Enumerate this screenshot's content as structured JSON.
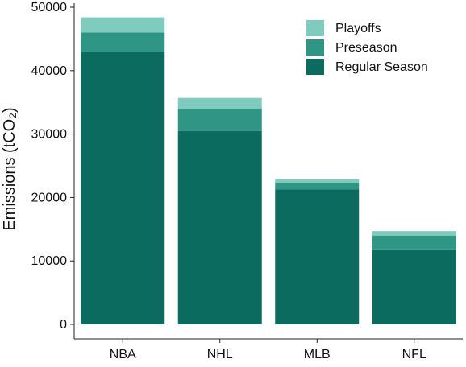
{
  "chart_data": {
    "type": "bar",
    "stacked": true,
    "categories": [
      "NBA",
      "NHL",
      "MLB",
      "NFL"
    ],
    "series": [
      {
        "name": "Regular Season",
        "values": [
          42900,
          30500,
          21300,
          11700
        ],
        "color": "#0b6b5e"
      },
      {
        "name": "Preseason",
        "values": [
          3100,
          3500,
          1000,
          2300
        ],
        "color": "#2f9585"
      },
      {
        "name": "Playoffs",
        "values": [
          2400,
          1700,
          600,
          700
        ],
        "color": "#7fcbbd"
      }
    ],
    "legend_order": [
      "Playoffs",
      "Preseason",
      "Regular Season"
    ],
    "ylabel": "Emissions (tCO₂)",
    "xlabel": "",
    "ylim": [
      0,
      50000
    ],
    "yticks": [
      0,
      10000,
      20000,
      30000,
      40000,
      50000
    ],
    "legend_position": "top-right",
    "grid": false
  }
}
